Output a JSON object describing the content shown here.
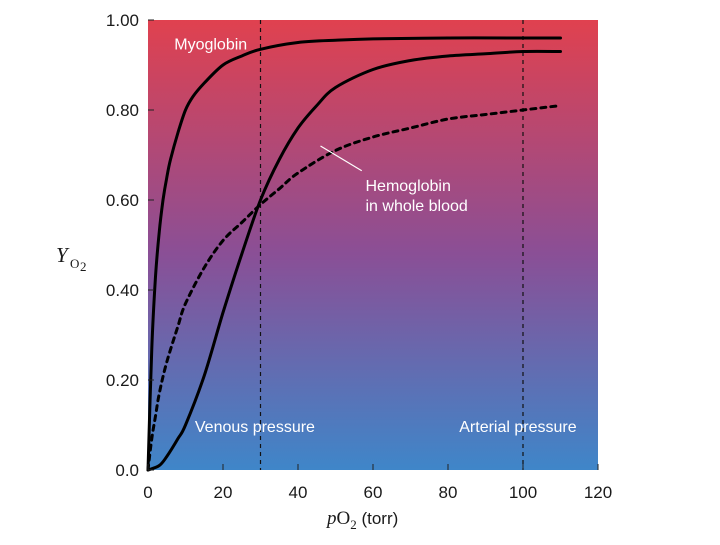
{
  "chart_data": {
    "type": "line",
    "title": "",
    "xlabel": {
      "italic": "p",
      "base": "O",
      "sub": "2",
      "unit": " (torr)"
    },
    "ylabel": {
      "main": "Y",
      "sub": "O",
      "subsub": "2"
    },
    "xlim": [
      0,
      120
    ],
    "ylim": [
      0,
      1.0
    ],
    "x_ticks": [
      0,
      20,
      40,
      60,
      80,
      100,
      120
    ],
    "x_tick_labels": [
      "0",
      "20",
      "40",
      "60",
      "80",
      "100",
      "120"
    ],
    "y_ticks": [
      0,
      0.2,
      0.4,
      0.6,
      0.8,
      1.0
    ],
    "y_tick_labels": [
      "0.0",
      "0.20",
      "0.40",
      "0.60",
      "0.80",
      "1.00"
    ],
    "background_gradient": {
      "top": "#e0414f",
      "middle": "#8a4f96",
      "bottom": "#3f86c9"
    },
    "series": [
      {
        "name": "Myoglobin",
        "style": "solid",
        "color": "#000000",
        "x": [
          0,
          1,
          2,
          3,
          4,
          5,
          6,
          8,
          10,
          12,
          15,
          20,
          25,
          30,
          40,
          50,
          60,
          80,
          100,
          110
        ],
        "y": [
          0.0,
          0.27,
          0.43,
          0.53,
          0.6,
          0.65,
          0.69,
          0.75,
          0.8,
          0.83,
          0.86,
          0.9,
          0.92,
          0.935,
          0.95,
          0.955,
          0.958,
          0.96,
          0.96,
          0.96
        ]
      },
      {
        "name": "Hemoglobin (solid)",
        "style": "solid",
        "color": "#000000",
        "x": [
          0,
          3,
          5,
          8,
          10,
          15,
          20,
          25,
          30,
          35,
          40,
          45,
          50,
          60,
          70,
          80,
          90,
          100,
          110
        ],
        "y": [
          0.0,
          0.01,
          0.03,
          0.07,
          0.1,
          0.21,
          0.35,
          0.48,
          0.6,
          0.69,
          0.76,
          0.81,
          0.85,
          0.89,
          0.91,
          0.92,
          0.925,
          0.93,
          0.93
        ]
      },
      {
        "name": "Hemoglobin in whole blood",
        "style": "dashed",
        "color": "#000000",
        "x": [
          0,
          1,
          2,
          3,
          5,
          8,
          10,
          15,
          20,
          25,
          30,
          35,
          40,
          50,
          60,
          70,
          80,
          90,
          100,
          110
        ],
        "y": [
          0.0,
          0.07,
          0.12,
          0.17,
          0.24,
          0.32,
          0.37,
          0.45,
          0.51,
          0.55,
          0.59,
          0.625,
          0.66,
          0.71,
          0.74,
          0.76,
          0.78,
          0.79,
          0.8,
          0.81
        ]
      }
    ],
    "reference_lines": [
      {
        "name": "Venous pressure",
        "x": 30
      },
      {
        "name": "Arterial pressure",
        "x": 100
      }
    ],
    "annotations": [
      {
        "text": "Myoglobin",
        "x": 7,
        "y": 0.935
      },
      {
        "text_lines": [
          "Hemoglobin",
          "in whole blood"
        ],
        "x": 58,
        "y": 0.62,
        "pointer_from": [
          57,
          0.665
        ],
        "pointer_to": [
          46,
          0.72
        ]
      },
      {
        "text": "Venous pressure",
        "x": 12.5,
        "y": 0.085
      },
      {
        "text": "Arterial pressure",
        "x": 83,
        "y": 0.085
      }
    ]
  }
}
